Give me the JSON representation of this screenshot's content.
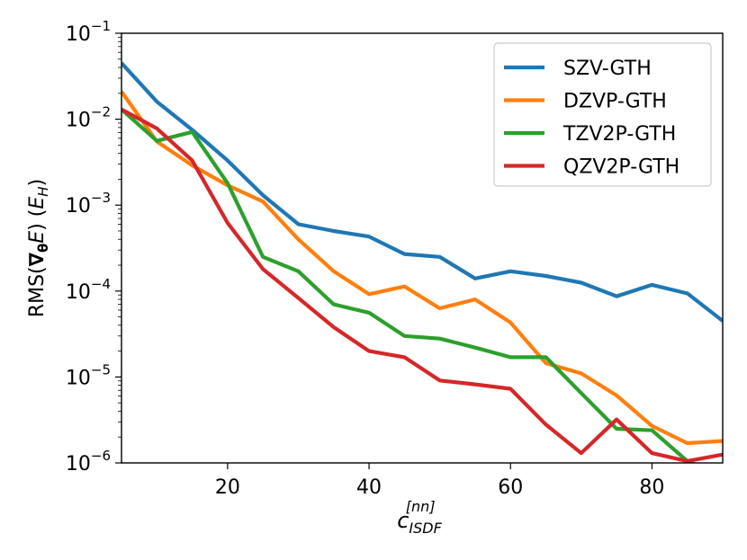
{
  "chart_data": {
    "type": "line",
    "xlabel": "c",
    "xlabel_sup": "[nn]",
    "xlabel_sub": "ISDF",
    "ylabel": "RMS(∇θE) (EH)",
    "ylabel_parts": {
      "prefix": "RMS(",
      "nabla": "∇",
      "theta": "θ",
      "e": "E",
      "mid": ") (",
      "eh": "E",
      "eh_sub": "H",
      "suffix": ")"
    },
    "yscale": "log",
    "xlim": [
      5,
      90
    ],
    "ylim": [
      1e-06,
      0.1
    ],
    "x_ticks": [
      20,
      40,
      60,
      80
    ],
    "x_tick_labels": [
      "20",
      "40",
      "60",
      "80"
    ],
    "y_ticks": [
      1e-06,
      1e-05,
      0.0001,
      0.001,
      0.01,
      0.1
    ],
    "y_tick_base": "10",
    "y_tick_exponents": [
      "−6",
      "−5",
      "−4",
      "−3",
      "−2",
      "−1"
    ],
    "grid": false,
    "legend_position": "top-right",
    "x": [
      5,
      10,
      15,
      20,
      25,
      30,
      35,
      40,
      45,
      50,
      55,
      60,
      65,
      70,
      75,
      80,
      85,
      90
    ],
    "series": [
      {
        "name": "SZV-GTH",
        "color": "#1f77b4",
        "values": [
          0.045,
          0.016,
          0.0075,
          0.0033,
          0.0013,
          0.0006,
          0.0005,
          0.00043,
          0.00027,
          0.00025,
          0.00014,
          0.00017,
          0.00015,
          0.000125,
          8.7e-05,
          0.000118,
          9.4e-05,
          4.5e-05
        ]
      },
      {
        "name": "DZVP-GTH",
        "color": "#ff7f0e",
        "values": [
          0.021,
          0.0055,
          0.0029,
          0.0017,
          0.0011,
          0.0004,
          0.00017,
          9.2e-05,
          0.000113,
          6.3e-05,
          8e-05,
          4.3e-05,
          1.45e-05,
          1.1e-05,
          6.1e-06,
          2.7e-06,
          1.7e-06,
          1.8e-06
        ]
      },
      {
        "name": "TZV2P-GTH",
        "color": "#2ca02c",
        "values": [
          0.013,
          0.0056,
          0.0071,
          0.0018,
          0.00025,
          0.00017,
          7e-05,
          5.6e-05,
          3e-05,
          2.8e-05,
          2.2e-05,
          1.7e-05,
          1.7e-05,
          6.5e-06,
          2.5e-06,
          2.4e-06,
          1.05e-06,
          7e-07
        ]
      },
      {
        "name": "QZV2P-GTH",
        "color": "#d62728",
        "values": [
          0.013,
          0.0078,
          0.0033,
          0.00062,
          0.00018,
          8.3e-05,
          3.8e-05,
          2e-05,
          1.7e-05,
          9.1e-06,
          8.2e-06,
          7.3e-06,
          2.8e-06,
          1.3e-06,
          3.2e-06,
          1.3e-06,
          1.05e-06,
          1.25e-06
        ]
      }
    ]
  }
}
